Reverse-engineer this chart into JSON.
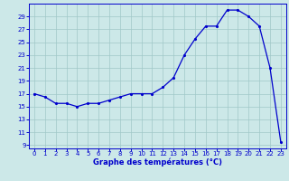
{
  "temperatures": [
    17,
    16.5,
    15.5,
    15.5,
    15,
    15.5,
    15.5,
    16,
    16.5,
    17,
    17,
    17,
    18,
    19.5,
    23,
    25.5,
    27.5,
    27.5,
    30,
    30,
    29,
    27.5,
    21,
    9.5
  ],
  "hours": [
    0,
    1,
    2,
    3,
    4,
    5,
    6,
    7,
    8,
    9,
    10,
    11,
    12,
    13,
    14,
    15,
    16,
    17,
    18,
    19,
    20,
    21,
    22,
    23
  ],
  "xlim": [
    -0.5,
    23.5
  ],
  "ylim": [
    8.5,
    31.0
  ],
  "yticks": [
    9,
    11,
    13,
    15,
    17,
    19,
    21,
    23,
    25,
    27,
    29
  ],
  "xticks": [
    0,
    1,
    2,
    3,
    4,
    5,
    6,
    7,
    8,
    9,
    10,
    11,
    12,
    13,
    14,
    15,
    16,
    17,
    18,
    19,
    20,
    21,
    22,
    23
  ],
  "xlabel": "Graphe des températures (°C)",
  "line_color": "#0000cc",
  "bg_color": "#cce8e8",
  "grid_color": "#a0c8c8",
  "axis_color": "#0000cc",
  "tick_color": "#0000cc",
  "label_color": "#0000cc",
  "xlabel_fontsize": 6.0,
  "tick_fontsize": 5.0,
  "linewidth": 0.9,
  "markersize": 2.5
}
